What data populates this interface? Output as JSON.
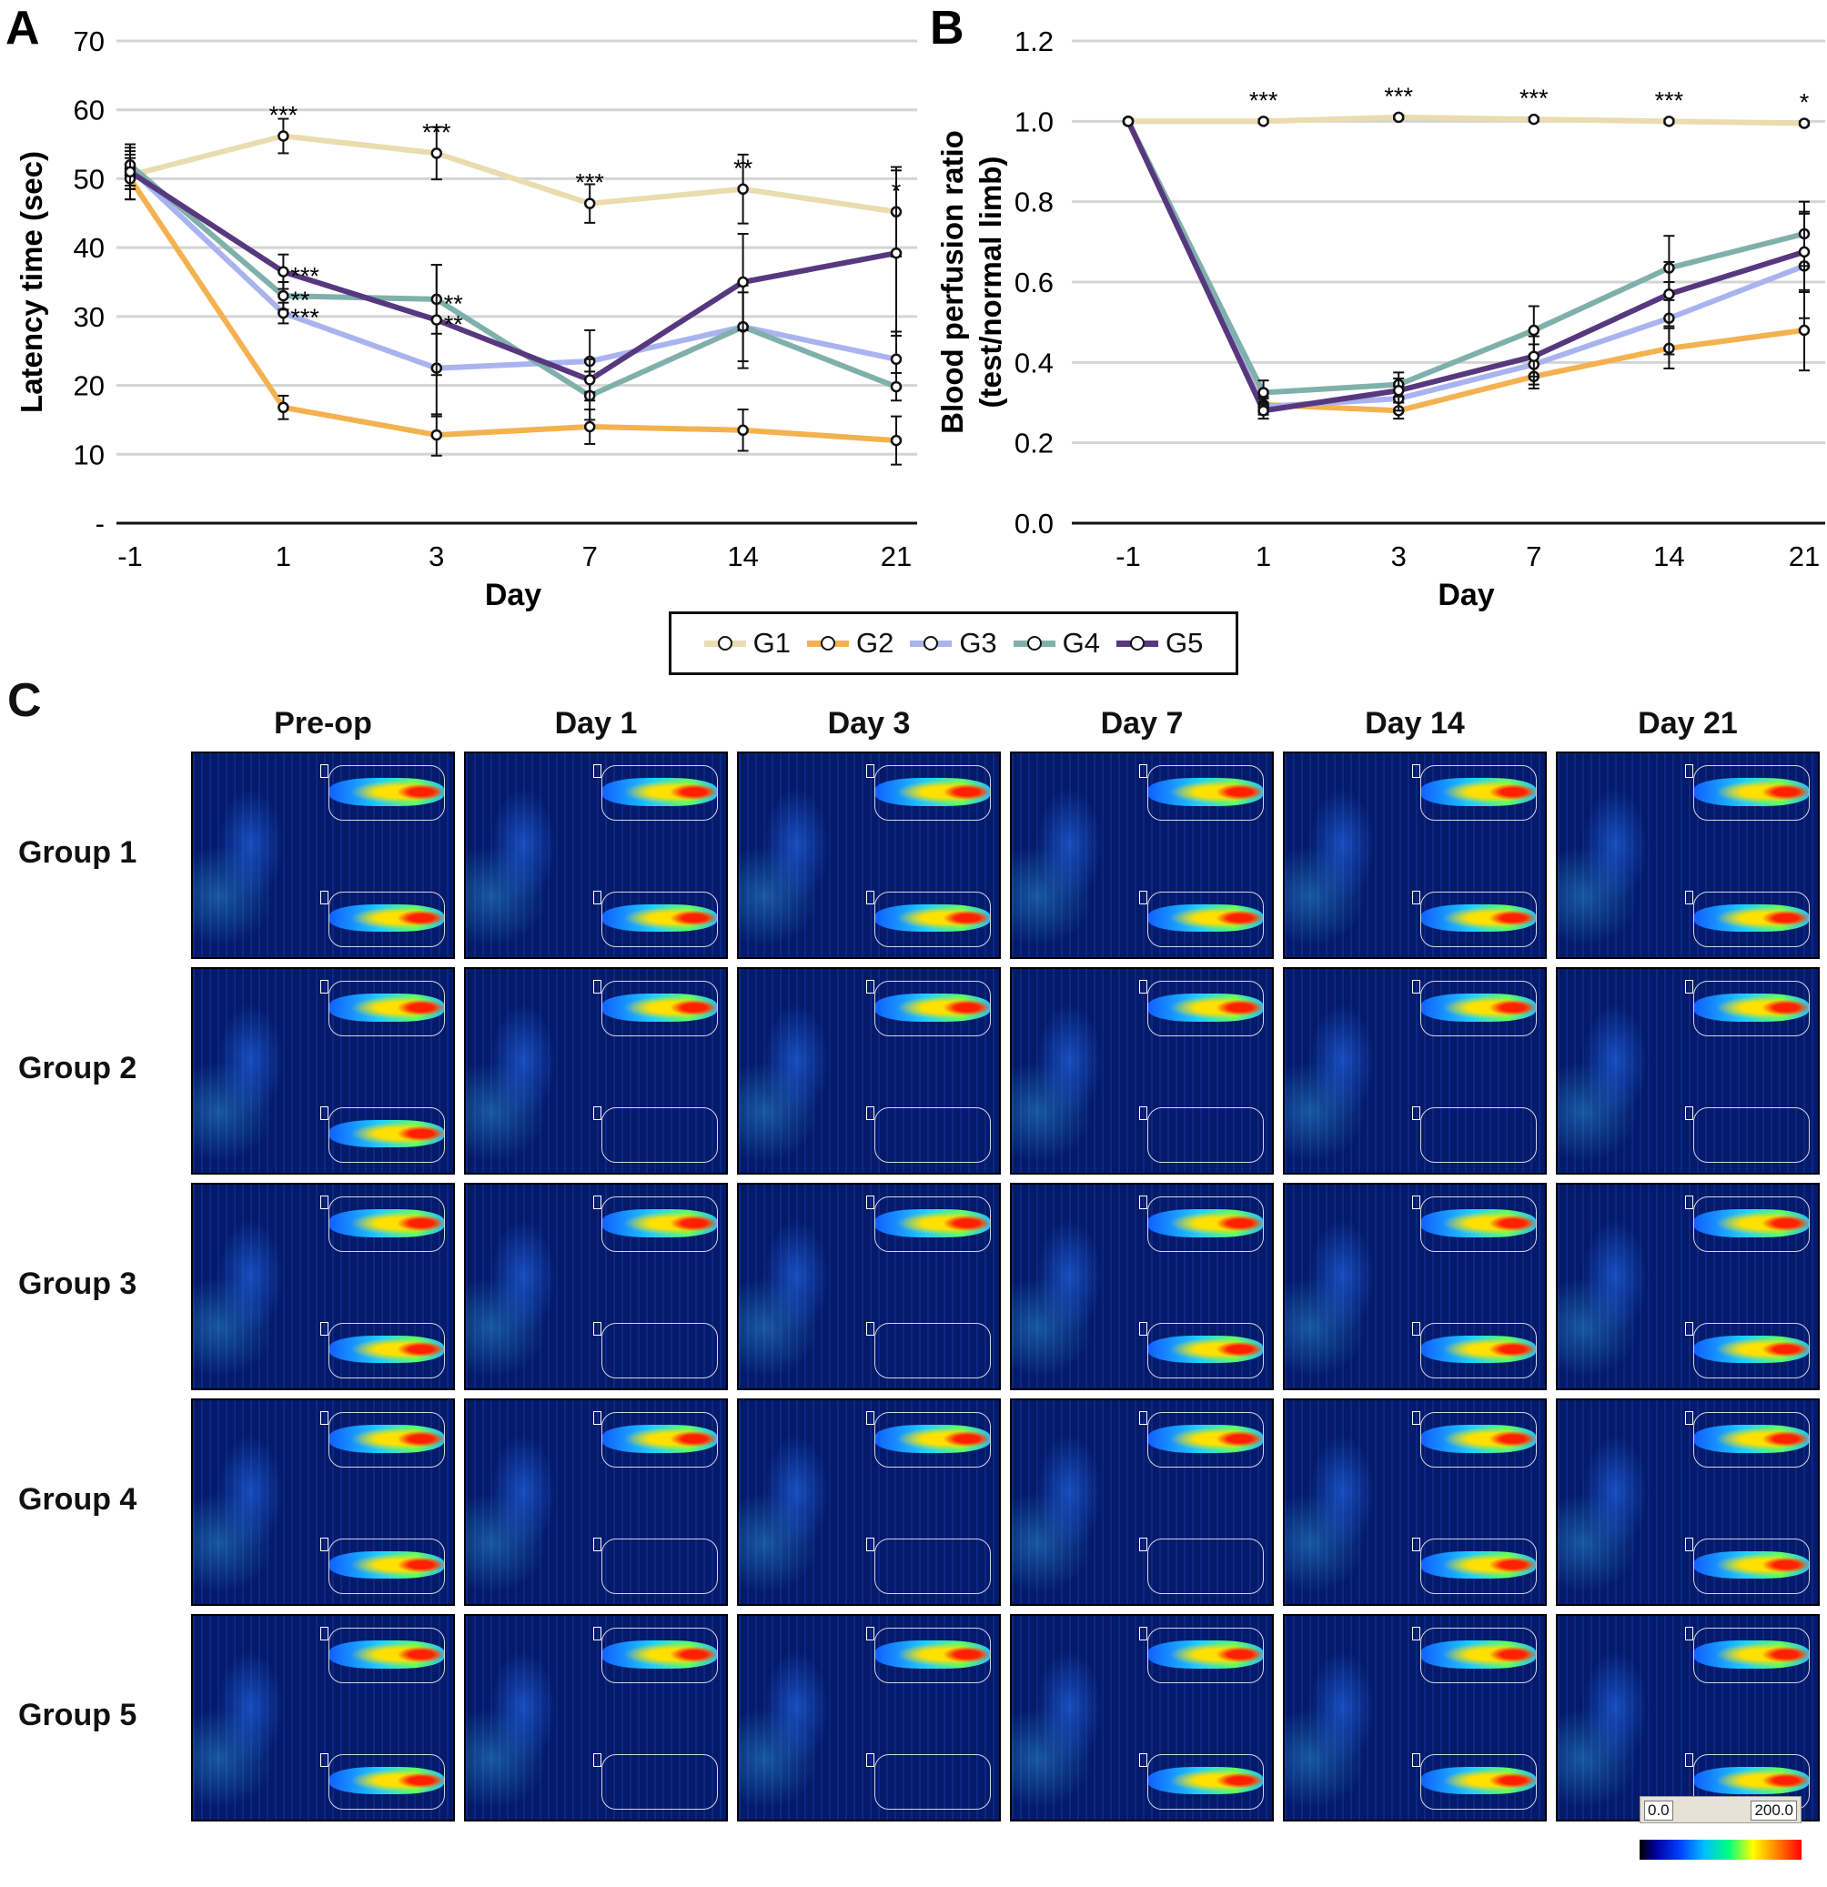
{
  "chart_data": [
    {
      "panel": "A",
      "type": "line",
      "xlabel": "Day",
      "ylabel": "Latency time (sec)",
      "categories": [
        "-1",
        "1",
        "3",
        "7",
        "14",
        "21"
      ],
      "y_ticks": [
        "-",
        "10",
        "20",
        "30",
        "40",
        "50",
        "60",
        "70"
      ],
      "ylim": [
        0,
        70
      ],
      "grid": true,
      "series": [
        {
          "name": "G1",
          "color": "#e9dcae",
          "values": [
            50.5,
            56.2,
            53.7,
            46.4,
            48.5,
            45.2
          ],
          "err": [
            3.5,
            2.5,
            3.8,
            2.8,
            5.0,
            6.5
          ]
        },
        {
          "name": "G2",
          "color": "#f3b24f",
          "values": [
            50.0,
            16.8,
            12.8,
            14.0,
            13.5,
            12.0
          ],
          "err": [
            3.0,
            1.7,
            3.0,
            2.5,
            3.0,
            3.5
          ]
        },
        {
          "name": "G3",
          "color": "#a9b3ef",
          "values": [
            51.5,
            30.5,
            22.5,
            23.5,
            28.5,
            23.8
          ],
          "err": [
            3.0,
            1.5,
            7.0,
            4.5,
            5.0,
            4.0
          ]
        },
        {
          "name": "G4",
          "color": "#7fb0ab",
          "values": [
            52.0,
            33.0,
            32.5,
            18.5,
            28.5,
            19.8
          ],
          "err": [
            3.0,
            2.0,
            5.0,
            3.5,
            6.0,
            2.0
          ]
        },
        {
          "name": "G5",
          "color": "#57387f",
          "values": [
            51.0,
            36.5,
            29.5,
            20.8,
            35.0,
            39.2
          ],
          "err": [
            2.5,
            2.5,
            8.0,
            3.0,
            7.0,
            12.0
          ]
        }
      ],
      "annotations": [
        {
          "cat": "1",
          "y": 56.2,
          "text": "***"
        },
        {
          "cat": "3",
          "y": 53.7,
          "text": "***"
        },
        {
          "cat": "7",
          "y": 46.4,
          "text": "***"
        },
        {
          "cat": "14",
          "y": 48.5,
          "text": "**"
        },
        {
          "cat": "21",
          "y": 45.2,
          "text": "*"
        },
        {
          "cat": "1",
          "y": 36.5,
          "text": "***",
          "side": "right"
        },
        {
          "cat": "1",
          "y": 33.0,
          "text": "**",
          "side": "right"
        },
        {
          "cat": "1",
          "y": 30.5,
          "text": "***",
          "side": "right"
        },
        {
          "cat": "3",
          "y": 32.5,
          "text": "**",
          "side": "right"
        },
        {
          "cat": "3",
          "y": 29.5,
          "text": "**",
          "side": "right"
        }
      ]
    },
    {
      "panel": "B",
      "type": "line",
      "xlabel": "Day",
      "ylabel": "Blood perfusion ratio",
      "ylabel2": "(test/normal limb)",
      "categories": [
        "-1",
        "1",
        "3",
        "7",
        "14",
        "21"
      ],
      "y_ticks": [
        "0.0",
        "0.2",
        "0.4",
        "0.6",
        "0.8",
        "1.0",
        "1.2"
      ],
      "ylim": [
        0,
        1.2
      ],
      "grid": true,
      "series": [
        {
          "name": "G1",
          "color": "#e9dcae",
          "values": [
            1.0,
            1.0,
            1.01,
            1.005,
            1.0,
            0.995
          ],
          "err": [
            0.005,
            0.005,
            0.005,
            0.005,
            0.005,
            0.005
          ]
        },
        {
          "name": "G2",
          "color": "#f3b24f",
          "values": [
            1.0,
            0.295,
            0.28,
            0.365,
            0.435,
            0.48
          ],
          "err": [
            0.005,
            0.02,
            0.02,
            0.03,
            0.05,
            0.1
          ]
        },
        {
          "name": "G3",
          "color": "#a9b3ef",
          "values": [
            1.0,
            0.29,
            0.31,
            0.395,
            0.51,
            0.64
          ],
          "err": [
            0.005,
            0.02,
            0.03,
            0.05,
            0.09,
            0.13
          ]
        },
        {
          "name": "G4",
          "color": "#7fb0ab",
          "values": [
            1.0,
            0.325,
            0.345,
            0.48,
            0.635,
            0.72
          ],
          "err": [
            0.005,
            0.03,
            0.03,
            0.06,
            0.08,
            0.08
          ]
        },
        {
          "name": "G5",
          "color": "#57387f",
          "values": [
            1.0,
            0.28,
            0.33,
            0.415,
            0.57,
            0.675
          ],
          "err": [
            0.005,
            0.02,
            0.03,
            0.05,
            0.08,
            0.1
          ]
        }
      ],
      "annotations": [
        {
          "cat": "1",
          "y": 1.0,
          "text": "***"
        },
        {
          "cat": "3",
          "y": 1.01,
          "text": "***"
        },
        {
          "cat": "7",
          "y": 1.005,
          "text": "***"
        },
        {
          "cat": "14",
          "y": 1.0,
          "text": "***"
        },
        {
          "cat": "21",
          "y": 0.995,
          "text": "*"
        }
      ]
    }
  ],
  "panel_labels": {
    "a": "A",
    "b": "B",
    "c": "C"
  },
  "legend": [
    {
      "name": "G1",
      "color": "#e9dcae"
    },
    {
      "name": "G2",
      "color": "#f3b24f"
    },
    {
      "name": "G3",
      "color": "#a9b3ef"
    },
    {
      "name": "G4",
      "color": "#7fb0ab"
    },
    {
      "name": "G5",
      "color": "#57387f"
    }
  ],
  "panel_c": {
    "columns": [
      "Pre-op",
      "Day 1",
      "Day 3",
      "Day 7",
      "Day 14",
      "Day 21"
    ],
    "rows": [
      "Group 1",
      "Group 2",
      "Group 3",
      "Group 4",
      "Group 5"
    ],
    "bottom_roi_perfused": [
      [
        true,
        true,
        true,
        true,
        true,
        true
      ],
      [
        true,
        false,
        false,
        false,
        false,
        false
      ],
      [
        true,
        false,
        false,
        true,
        true,
        true
      ],
      [
        true,
        false,
        false,
        false,
        true,
        true
      ],
      [
        true,
        false,
        false,
        true,
        true,
        true
      ]
    ],
    "scale": {
      "min": "0.0",
      "max": "200.0"
    }
  }
}
